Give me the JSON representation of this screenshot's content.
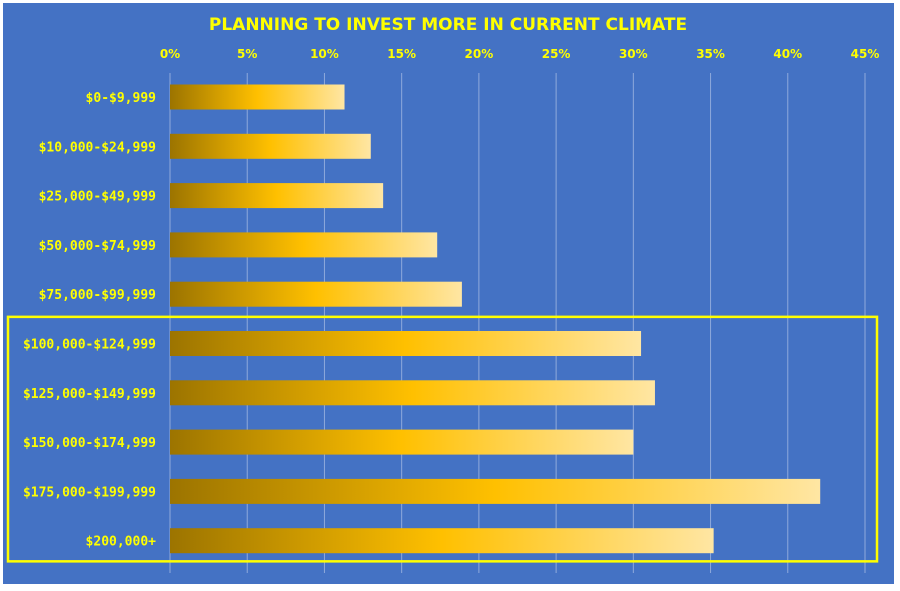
{
  "colors": {
    "background": "#4472C4",
    "text": "#FFFF00",
    "highlight_box": "#FFFF00",
    "gridline": "#8FA9DC",
    "bar_gradient": [
      "#9C7400",
      "#FFC000",
      "#FFE6A3"
    ]
  },
  "chart_data": {
    "type": "bar",
    "orientation": "horizontal",
    "title": "PLANNING TO INVEST MORE IN CURRENT CLIMATE",
    "xlabel": "",
    "ylabel": "",
    "xlim": [
      0,
      45
    ],
    "x_axis_position": "top",
    "x_ticks": [
      0,
      5,
      10,
      15,
      20,
      25,
      30,
      35,
      40,
      45
    ],
    "x_tick_labels": [
      "0%",
      "5%",
      "10%",
      "15%",
      "20%",
      "25%",
      "30%",
      "35%",
      "40%",
      "45%"
    ],
    "grid": true,
    "categories": [
      "$0-$9,999",
      "$10,000-$24,999",
      "$25,000-$49,999",
      "$50,000-$74,999",
      "$75,000-$99,999",
      "$100,000-$124,999",
      "$125,000-$149,999",
      "$150,000-$174,999",
      "$175,000-$199,999",
      "$200,000+"
    ],
    "values": [
      11.3,
      13.0,
      13.8,
      17.3,
      18.9,
      30.5,
      31.4,
      30.0,
      42.1,
      35.2
    ],
    "highlighted_categories": [
      "$100,000-$124,999",
      "$125,000-$149,999",
      "$150,000-$174,999",
      "$175,000-$199,999",
      "$200,000+"
    ]
  }
}
